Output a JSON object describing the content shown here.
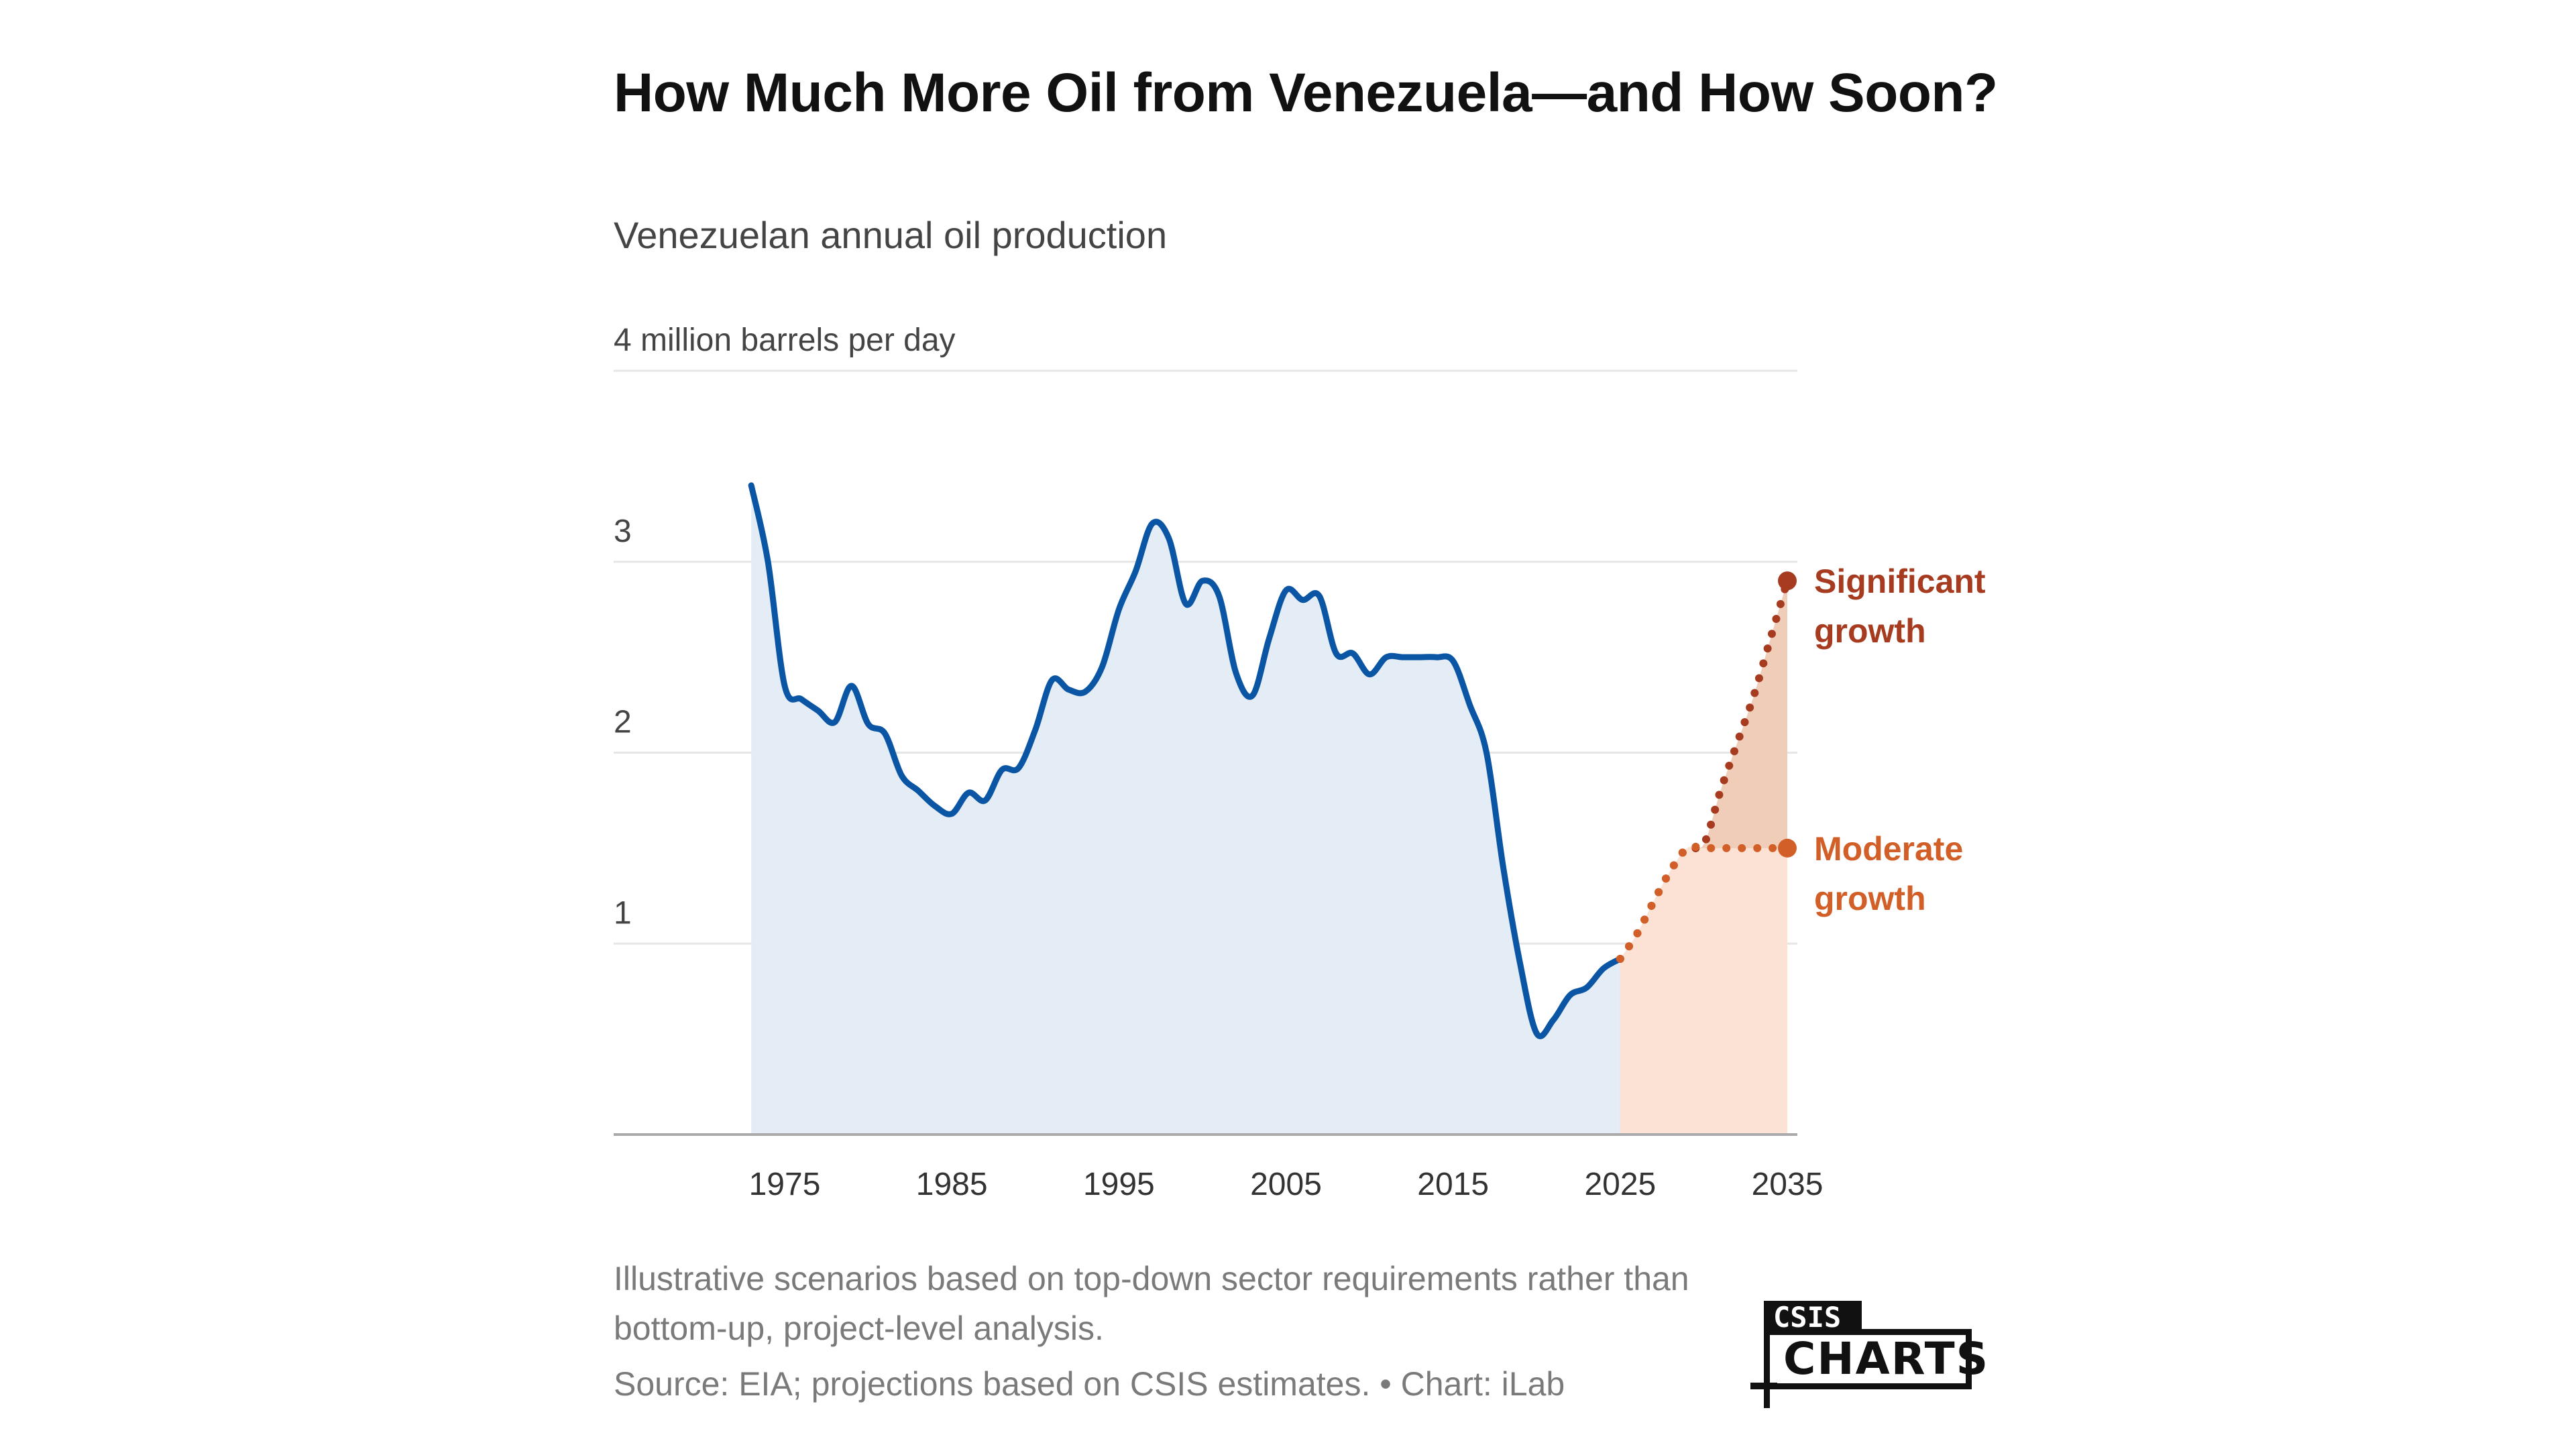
{
  "header": {
    "title": "How Much More Oil from Venezuela—and How Soon?",
    "subtitle": "Venezuelan annual oil production"
  },
  "footer": {
    "note": "Illustrative scenarios based on top-down sector requirements rather than bottom-up, project-level analysis.",
    "source": "Source: EIA; projections based on CSIS estimates. • Chart: iLab"
  },
  "logo": {
    "top": "CSIS",
    "bottom": "CHARTS"
  },
  "colors": {
    "historical_line": "#0b56a4",
    "historical_fill": "#e4ecf6",
    "projection_fill_moderate": "#fbe2d5",
    "projection_fill_significant": "#efcdb9",
    "moderate": "#d15f27",
    "significant": "#a63b1f",
    "grid": "#e6e6e6",
    "axis": "#aaaaaa",
    "tick_text": "#333333"
  },
  "chart_data": {
    "type": "area",
    "title": "How Much More Oil from Venezuela—and How Soon?",
    "subtitle": "Venezuelan annual oil production",
    "xlabel": "",
    "ylabel": "4 million barrels per day",
    "unit": "million barrels per day",
    "xlim": [
      1973,
      2035
    ],
    "ylim": [
      0,
      4
    ],
    "grid": true,
    "x_ticks": [
      1975,
      1985,
      1995,
      2005,
      2015,
      2025,
      2035
    ],
    "y_ticks": [
      {
        "value": 1,
        "label": "1"
      },
      {
        "value": 2,
        "label": "2"
      },
      {
        "value": 3,
        "label": "3"
      },
      {
        "value": 4,
        "label": "4 million barrels per day"
      }
    ],
    "series": [
      {
        "name": "Historical",
        "style": "solid",
        "x": [
          1973,
          1974,
          1975,
          1976,
          1977,
          1978,
          1979,
          1980,
          1981,
          1982,
          1983,
          1984,
          1985,
          1986,
          1987,
          1988,
          1989,
          1990,
          1991,
          1992,
          1993,
          1994,
          1995,
          1996,
          1997,
          1998,
          1999,
          2000,
          2001,
          2002,
          2003,
          2004,
          2005,
          2006,
          2007,
          2008,
          2009,
          2010,
          2011,
          2012,
          2013,
          2014,
          2015,
          2016,
          2017,
          2018,
          2019,
          2020,
          2021,
          2022,
          2023,
          2024,
          2025
        ],
        "values": [
          3.4,
          3.0,
          2.35,
          2.28,
          2.22,
          2.16,
          2.35,
          2.15,
          2.1,
          1.88,
          1.8,
          1.72,
          1.68,
          1.79,
          1.75,
          1.91,
          1.92,
          2.12,
          2.38,
          2.33,
          2.32,
          2.45,
          2.75,
          2.95,
          3.2,
          3.12,
          2.78,
          2.9,
          2.82,
          2.42,
          2.3,
          2.6,
          2.85,
          2.8,
          2.82,
          2.52,
          2.52,
          2.41,
          2.5,
          2.5,
          2.5,
          2.5,
          2.48,
          2.25,
          2.0,
          1.4,
          0.9,
          0.53,
          0.6,
          0.73,
          0.77,
          0.87,
          0.92
        ]
      },
      {
        "name": "Moderate growth",
        "style": "dotted",
        "label": "Moderate growth",
        "x": [
          2025,
          2026,
          2027,
          2028,
          2029,
          2030,
          2031,
          2032,
          2033,
          2034,
          2035
        ],
        "values": [
          0.92,
          1.05,
          1.22,
          1.38,
          1.5,
          1.5,
          1.5,
          1.5,
          1.5,
          1.5,
          1.5
        ]
      },
      {
        "name": "Significant growth",
        "style": "dotted",
        "label": "Significant growth",
        "x": [
          2025,
          2026,
          2027,
          2028,
          2029,
          2030,
          2031,
          2032,
          2033,
          2034,
          2035
        ],
        "values": [
          0.92,
          1.05,
          1.22,
          1.38,
          1.5,
          1.52,
          1.8,
          2.05,
          2.3,
          2.6,
          2.9
        ]
      }
    ],
    "legend": "direct labels at right end of projection lines"
  }
}
